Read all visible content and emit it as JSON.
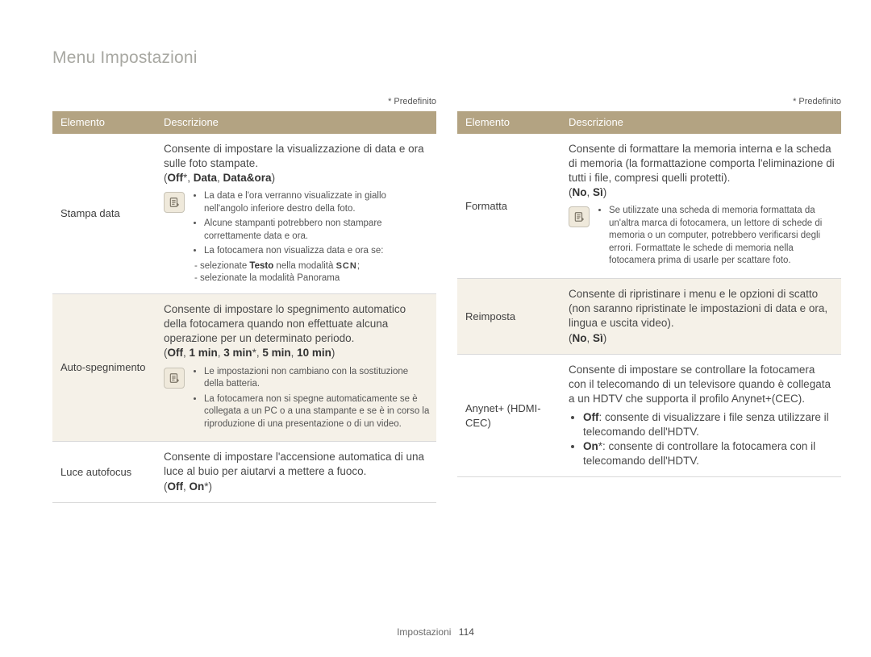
{
  "page": {
    "title": "Menu Impostazioni",
    "predef": "* Predefinito",
    "footer_section": "Impostazioni",
    "footer_page": "114",
    "colors": {
      "header_bg": "#b3a382",
      "header_text": "#ffffff",
      "alt_row_bg": "#f5f1e8",
      "title_color": "#a8a8a2",
      "border": "#d9d9d9",
      "note_icon_bg": "#efe9db",
      "note_icon_border": "#c8c3b6"
    }
  },
  "header": {
    "el": "Elemento",
    "desc": "Descrizione"
  },
  "left": [
    {
      "el": "Stampa data",
      "desc": "Consente di impostare la visualizzazione di data e ora sulle foto stampate. ",
      "opts": "(<b>Off</b>*, <b>Data</b>, <b>Data&ora</b>)",
      "note": {
        "items": [
          "La data e l'ora verranno visualizzate in giallo nell'angolo inferiore destro della foto.",
          "Alcune stampanti potrebbero non stampare correttamente data e ora.",
          "La fotocamera non visualizza data e ora se:"
        ],
        "sub": [
          "selezionate <b>Testo</b> nella modalità <span class=\"scn\">SCN</span>;",
          "selezionate la modalità Panorama"
        ]
      },
      "alt": false
    },
    {
      "el": "Auto-spegnimento",
      "desc": "Consente di impostare lo spegnimento automatico della fotocamera quando non effettuate alcuna operazione per un determinato periodo.",
      "opts": "(<b>Off</b>, <b>1 min</b>, <b>3 min</b>*, <b>5 min</b>, <b>10 min</b>)",
      "note": {
        "items": [
          "Le impostazioni non cambiano con la sostituzione della batteria.",
          "La fotocamera non si spegne automaticamente se è collegata a un PC o a una stampante e se è in corso la riproduzione di una presentazione o di un video."
        ]
      },
      "alt": true
    },
    {
      "el": "Luce autofocus",
      "desc": "Consente di impostare l'accensione automatica di una luce al buio per aiutarvi a mettere a fuoco. ",
      "opts": "(<b>Off</b>, <b>On</b>*)",
      "alt": false
    }
  ],
  "right": [
    {
      "el": "Formatta",
      "desc": "Consente di formattare la memoria interna e la scheda di memoria (la formattazione comporta l'eliminazione di tutti i file, compresi quelli protetti). ",
      "opts": "(<b>No</b>, <b>Sì</b>)",
      "note": {
        "items": [
          "Se utilizzate una scheda di memoria formattata da un'altra marca di fotocamera, un lettore di schede di memoria o un computer, potrebbero verificarsi degli errori. Formattate le schede di memoria nella fotocamera prima di usarle per scattare foto."
        ]
      },
      "alt": false
    },
    {
      "el": "Reimposta",
      "desc": "Consente di ripristinare i menu e le opzioni di scatto (non saranno ripristinate le impostazioni di data e ora, lingua e uscita video). ",
      "opts": "(<b>No</b>, <b>Sì</b>)",
      "alt": true
    },
    {
      "el": "Anynet+ (HDMI-CEC)",
      "desc_html": "Consente di impostare se controllare la fotocamera con il telecomando di un televisore quando è collegata a un HDTV che supporta il profilo Anynet+(CEC).<ul style=\"margin:4px 0 0 0;padding-left:18px;\"><li><b>Off</b>: consente di visualizzare i file senza utilizzare il telecomando dell'HDTV.</li><li><b>On</b>*: consente di controllare la fotocamera con il telecomando dell'HDTV.</li></ul>",
      "alt": false
    }
  ]
}
